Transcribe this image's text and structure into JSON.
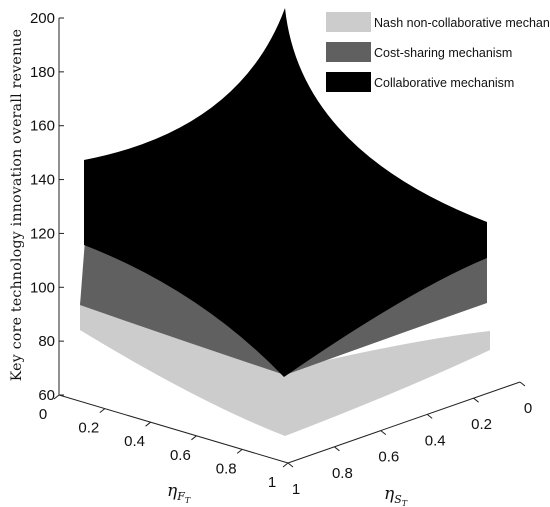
{
  "chart_data": {
    "type": "surface",
    "zlabel": "Key core technology innovation  overall revenue",
    "xlabel_symbol": "η",
    "xlabel_sub_main": "F",
    "xlabel_sub_sub": "T",
    "ylabel_symbol": "η",
    "ylabel_sub_main": "S",
    "ylabel_sub_sub": "T",
    "zticks": [
      "60",
      "80",
      "100",
      "120",
      "140",
      "160",
      "180",
      "200"
    ],
    "xticks": [
      "0",
      "0.2",
      "0.4",
      "0.6",
      "0.8",
      "1"
    ],
    "yticks": [
      "0",
      "0.2",
      "0.4",
      "0.6",
      "0.8",
      "1"
    ],
    "zlim": [
      60,
      200
    ],
    "legend": {
      "position": "top-right",
      "entries": [
        "Nash non-collaborative mechanism",
        "Cost-sharing mechanism",
        "Collaborative mechanism"
      ]
    },
    "series": [
      {
        "name": "Nash non-collaborative mechanism",
        "color": "#cccccc",
        "corners": {
          "at_F0_S0": 72,
          "at_F1_S0": 92,
          "at_F0_S1": 78,
          "at_F1_S1": 57
        }
      },
      {
        "name": "Cost-sharing mechanism",
        "color": "#606060",
        "corners": {
          "at_F0_S0": 92,
          "at_F1_S0": 117,
          "at_F0_S1": 102,
          "at_F1_S1": 65
        }
      },
      {
        "name": "Collaborative mechanism",
        "color": "#000000",
        "corners": {
          "at_F0_S0": 200,
          "at_F1_S0": 145,
          "at_F0_S1": 126,
          "at_F1_S1": 72
        }
      }
    ]
  }
}
